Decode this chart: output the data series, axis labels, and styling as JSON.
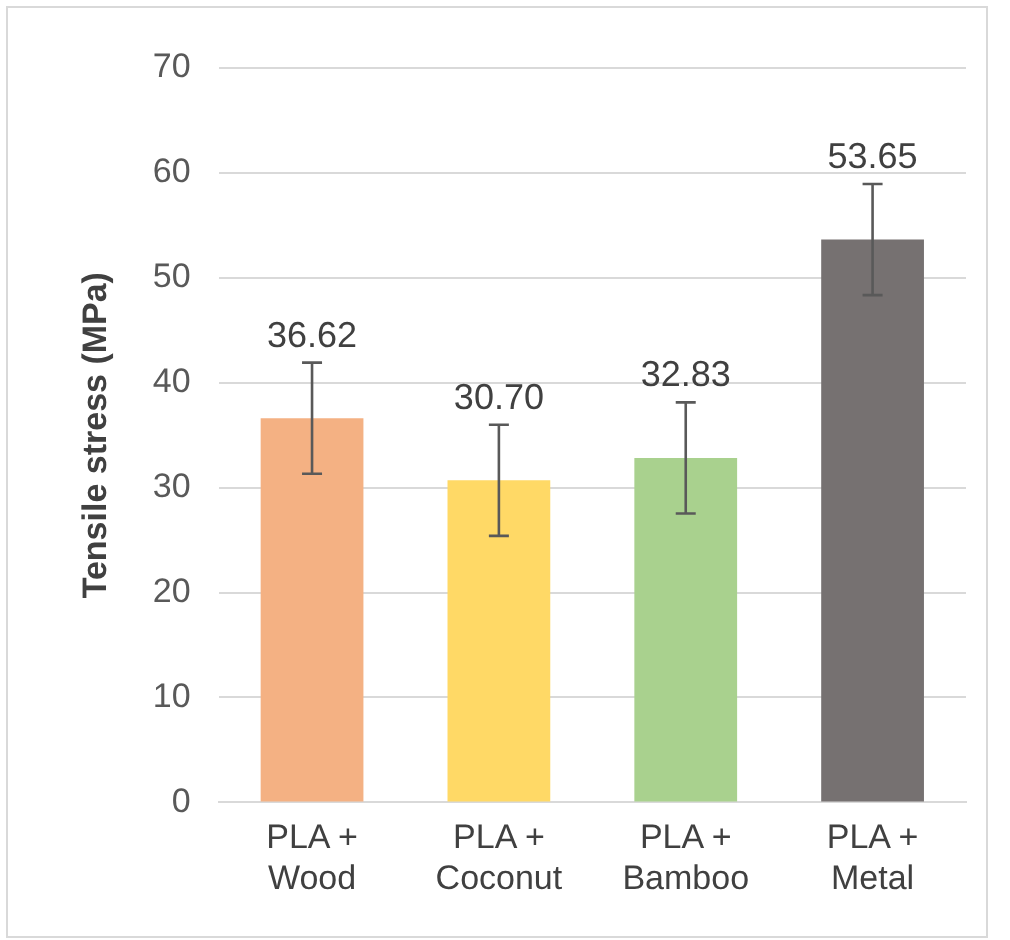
{
  "chart_data": {
    "type": "bar",
    "ylabel": "Tensile stress (MPa)",
    "categories": [
      "PLA +\nWood",
      "PLA +\nCoconut",
      "PLA +\nBamboo",
      "PLA +\nMetal"
    ],
    "values": [
      36.62,
      30.7,
      32.83,
      53.65
    ],
    "colors": [
      "#f4b183",
      "#ffd966",
      "#a9d18e",
      "#767171"
    ],
    "errors": [
      5.3,
      5.3,
      5.3,
      5.3
    ],
    "value_labels": [
      "36.62",
      "30.70",
      "32.83",
      "53.65"
    ],
    "ylim": [
      0,
      70
    ],
    "yticks": [
      0,
      10,
      20,
      30,
      40,
      50,
      60,
      70
    ],
    "grid": "y",
    "legend": false
  }
}
